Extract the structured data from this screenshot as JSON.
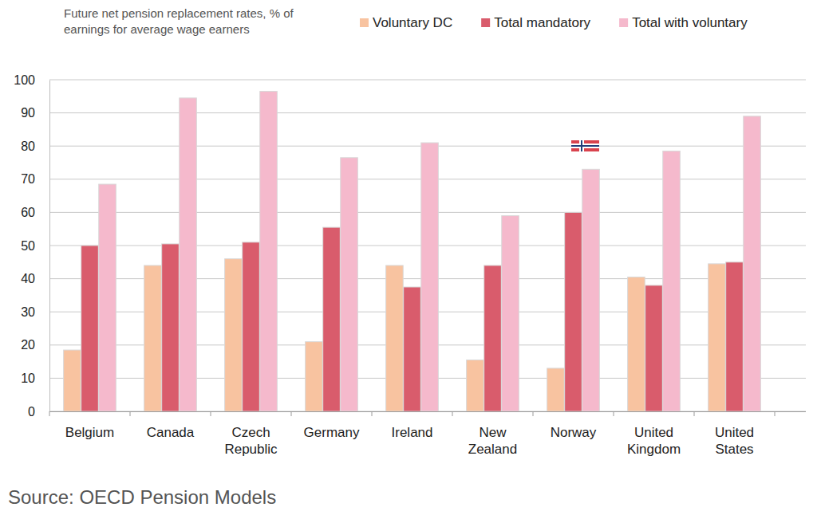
{
  "chart_data": {
    "type": "bar",
    "title": "Future net pension replacement rates, % of earnings for average wage earners",
    "source": "Source: OECD Pension Models",
    "categories": [
      "Belgium",
      "Canada",
      "Czech Republic",
      "Germany",
      "Ireland",
      "New Zealand",
      "Norway",
      "United Kingdom",
      "United States"
    ],
    "series": [
      {
        "name": "Voluntary DC",
        "color": "#f8c3a0",
        "values": [
          18.5,
          44,
          46,
          21,
          44,
          15.5,
          13,
          40.5,
          44.5
        ]
      },
      {
        "name": "Total mandatory",
        "color": "#d95c6c",
        "values": [
          50,
          50.5,
          51,
          55.5,
          37.5,
          44,
          60,
          38,
          45
        ]
      },
      {
        "name": "Total with voluntary",
        "color": "#f5b9cc",
        "values": [
          68.5,
          94.5,
          96.5,
          76.5,
          81,
          59,
          73,
          78.5,
          89
        ]
      }
    ],
    "ylim": [
      0,
      100
    ],
    "yticks": [
      0,
      10,
      20,
      30,
      40,
      50,
      60,
      70,
      80,
      90,
      100
    ],
    "grid": true,
    "legend": "top"
  }
}
